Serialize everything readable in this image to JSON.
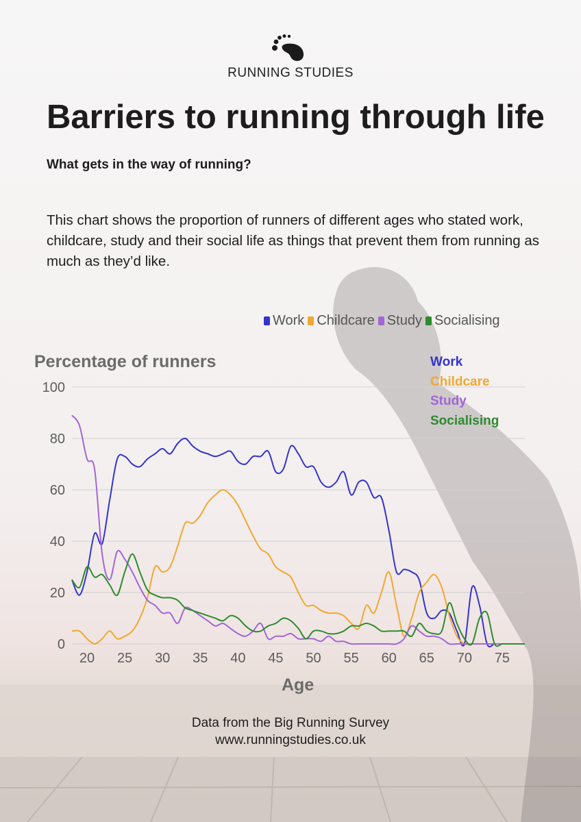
{
  "brand": "RUNNING STUDIES",
  "title": "Barriers to running through life",
  "subtitle": "What gets in the way of running?",
  "description": "This chart shows the proportion of runners of different ages who stated work, childcare, study and their social life as things that prevent them from running as much as they’d like.",
  "icons": {
    "logo": "footprint-icon"
  },
  "source": {
    "line1": "Data from the Big Running Survey",
    "line2": "www.runningstudies.co.uk"
  },
  "chart_data": {
    "type": "line",
    "ylabel": "Percentage of runners",
    "xlabel": "Age",
    "xlim": [
      18,
      78
    ],
    "ylim": [
      0,
      100
    ],
    "xticks": [
      20,
      25,
      30,
      35,
      40,
      45,
      50,
      55,
      60,
      65,
      70,
      75
    ],
    "yticks": [
      0,
      20,
      40,
      60,
      80,
      100
    ],
    "grid": true,
    "legend": "top-right",
    "series": [
      {
        "name": "Work",
        "color": "#3333cc",
        "points": [
          [
            18,
            25
          ],
          [
            19,
            19
          ],
          [
            20,
            28
          ],
          [
            21,
            43
          ],
          [
            22,
            39
          ],
          [
            23,
            56
          ],
          [
            24,
            72
          ],
          [
            25,
            73
          ],
          [
            26,
            70
          ],
          [
            27,
            69
          ],
          [
            28,
            72
          ],
          [
            29,
            74
          ],
          [
            30,
            76
          ],
          [
            31,
            74
          ],
          [
            32,
            78
          ],
          [
            33,
            80
          ],
          [
            34,
            77
          ],
          [
            35,
            75
          ],
          [
            36,
            74
          ],
          [
            37,
            73
          ],
          [
            38,
            74
          ],
          [
            39,
            75
          ],
          [
            40,
            71
          ],
          [
            41,
            70
          ],
          [
            42,
            73
          ],
          [
            43,
            73
          ],
          [
            44,
            75
          ],
          [
            45,
            67
          ],
          [
            46,
            68
          ],
          [
            47,
            77
          ],
          [
            48,
            74
          ],
          [
            49,
            69
          ],
          [
            50,
            69
          ],
          [
            51,
            63
          ],
          [
            52,
            61
          ],
          [
            53,
            63
          ],
          [
            54,
            67
          ],
          [
            55,
            58
          ],
          [
            56,
            63
          ],
          [
            57,
            63
          ],
          [
            58,
            57
          ],
          [
            59,
            57
          ],
          [
            60,
            44
          ],
          [
            61,
            28
          ],
          [
            62,
            29
          ],
          [
            63,
            28
          ],
          [
            64,
            25
          ],
          [
            65,
            12
          ],
          [
            66,
            10
          ],
          [
            67,
            13
          ],
          [
            68,
            12
          ],
          [
            69,
            5
          ],
          [
            70,
            0
          ],
          [
            71,
            22
          ],
          [
            72,
            15
          ],
          [
            73,
            0
          ],
          [
            74,
            0
          ],
          [
            75,
            0
          ],
          [
            76,
            0
          ],
          [
            77,
            0
          ],
          [
            78,
            0
          ]
        ]
      },
      {
        "name": "Childcare",
        "color": "#f0a830",
        "points": [
          [
            18,
            5
          ],
          [
            19,
            5
          ],
          [
            20,
            2
          ],
          [
            21,
            0
          ],
          [
            22,
            2
          ],
          [
            23,
            5
          ],
          [
            24,
            2
          ],
          [
            25,
            3
          ],
          [
            26,
            5
          ],
          [
            27,
            10
          ],
          [
            28,
            18
          ],
          [
            29,
            30
          ],
          [
            30,
            28
          ],
          [
            31,
            30
          ],
          [
            32,
            38
          ],
          [
            33,
            47
          ],
          [
            34,
            47
          ],
          [
            35,
            50
          ],
          [
            36,
            55
          ],
          [
            37,
            58
          ],
          [
            38,
            60
          ],
          [
            39,
            58
          ],
          [
            40,
            54
          ],
          [
            41,
            48
          ],
          [
            42,
            42
          ],
          [
            43,
            37
          ],
          [
            44,
            35
          ],
          [
            45,
            30
          ],
          [
            46,
            28
          ],
          [
            47,
            26
          ],
          [
            48,
            20
          ],
          [
            49,
            15
          ],
          [
            50,
            15
          ],
          [
            51,
            13
          ],
          [
            52,
            12
          ],
          [
            53,
            12
          ],
          [
            54,
            11
          ],
          [
            55,
            8
          ],
          [
            56,
            6
          ],
          [
            57,
            15
          ],
          [
            58,
            12
          ],
          [
            59,
            20
          ],
          [
            60,
            28
          ],
          [
            61,
            15
          ],
          [
            62,
            3
          ],
          [
            63,
            10
          ],
          [
            64,
            20
          ],
          [
            65,
            24
          ],
          [
            66,
            27
          ],
          [
            67,
            22
          ],
          [
            68,
            11
          ],
          [
            69,
            3
          ],
          [
            70,
            0
          ],
          [
            71,
            0
          ],
          [
            72,
            0
          ],
          [
            73,
            0
          ],
          [
            74,
            0
          ],
          [
            75,
            0
          ],
          [
            76,
            0
          ],
          [
            77,
            0
          ],
          [
            78,
            0
          ]
        ]
      },
      {
        "name": "Study",
        "color": "#a066d6",
        "points": [
          [
            18,
            89
          ],
          [
            19,
            85
          ],
          [
            20,
            72
          ],
          [
            21,
            68
          ],
          [
            22,
            35
          ],
          [
            23,
            25
          ],
          [
            24,
            36
          ],
          [
            25,
            33
          ],
          [
            26,
            28
          ],
          [
            27,
            22
          ],
          [
            28,
            17
          ],
          [
            29,
            15
          ],
          [
            30,
            12
          ],
          [
            31,
            12
          ],
          [
            32,
            8
          ],
          [
            33,
            14
          ],
          [
            34,
            13
          ],
          [
            35,
            11
          ],
          [
            36,
            9
          ],
          [
            37,
            7
          ],
          [
            38,
            8
          ],
          [
            39,
            6
          ],
          [
            40,
            4
          ],
          [
            41,
            3
          ],
          [
            42,
            5
          ],
          [
            43,
            8
          ],
          [
            44,
            2
          ],
          [
            45,
            3
          ],
          [
            46,
            3
          ],
          [
            47,
            4
          ],
          [
            48,
            2
          ],
          [
            49,
            2
          ],
          [
            50,
            2
          ],
          [
            51,
            1
          ],
          [
            52,
            3
          ],
          [
            53,
            1
          ],
          [
            54,
            1
          ],
          [
            55,
            0
          ],
          [
            56,
            0
          ],
          [
            57,
            0
          ],
          [
            58,
            0
          ],
          [
            59,
            0
          ],
          [
            60,
            0
          ],
          [
            61,
            0
          ],
          [
            62,
            2
          ],
          [
            63,
            7
          ],
          [
            64,
            5
          ],
          [
            65,
            3
          ],
          [
            66,
            3
          ],
          [
            67,
            2
          ],
          [
            68,
            0
          ],
          [
            69,
            0
          ],
          [
            70,
            0
          ],
          [
            71,
            0
          ],
          [
            72,
            0
          ],
          [
            73,
            0
          ],
          [
            74,
            0
          ],
          [
            75,
            0
          ],
          [
            76,
            0
          ],
          [
            77,
            0
          ],
          [
            78,
            0
          ]
        ]
      },
      {
        "name": "Socialising",
        "color": "#2e8b2e",
        "points": [
          [
            18,
            25
          ],
          [
            19,
            22
          ],
          [
            20,
            30
          ],
          [
            21,
            26
          ],
          [
            22,
            27
          ],
          [
            23,
            23
          ],
          [
            24,
            19
          ],
          [
            25,
            28
          ],
          [
            26,
            35
          ],
          [
            27,
            28
          ],
          [
            28,
            21
          ],
          [
            29,
            19
          ],
          [
            30,
            18
          ],
          [
            31,
            18
          ],
          [
            32,
            17
          ],
          [
            33,
            14
          ],
          [
            34,
            13
          ],
          [
            35,
            12
          ],
          [
            36,
            11
          ],
          [
            37,
            10
          ],
          [
            38,
            9
          ],
          [
            39,
            11
          ],
          [
            40,
            10
          ],
          [
            41,
            7
          ],
          [
            42,
            5
          ],
          [
            43,
            5
          ],
          [
            44,
            7
          ],
          [
            45,
            8
          ],
          [
            46,
            10
          ],
          [
            47,
            9
          ],
          [
            48,
            6
          ],
          [
            49,
            2
          ],
          [
            50,
            5
          ],
          [
            51,
            5
          ],
          [
            52,
            4
          ],
          [
            53,
            4
          ],
          [
            54,
            5
          ],
          [
            55,
            7
          ],
          [
            56,
            7
          ],
          [
            57,
            8
          ],
          [
            58,
            7
          ],
          [
            59,
            5
          ],
          [
            60,
            5
          ],
          [
            61,
            5
          ],
          [
            62,
            5
          ],
          [
            63,
            3
          ],
          [
            64,
            8
          ],
          [
            65,
            5
          ],
          [
            66,
            4
          ],
          [
            67,
            5
          ],
          [
            68,
            16
          ],
          [
            69,
            8
          ],
          [
            70,
            2
          ],
          [
            71,
            0
          ],
          [
            72,
            10
          ],
          [
            73,
            12
          ],
          [
            74,
            0
          ],
          [
            75,
            0
          ],
          [
            76,
            0
          ],
          [
            77,
            0
          ],
          [
            78,
            0
          ]
        ]
      }
    ]
  }
}
